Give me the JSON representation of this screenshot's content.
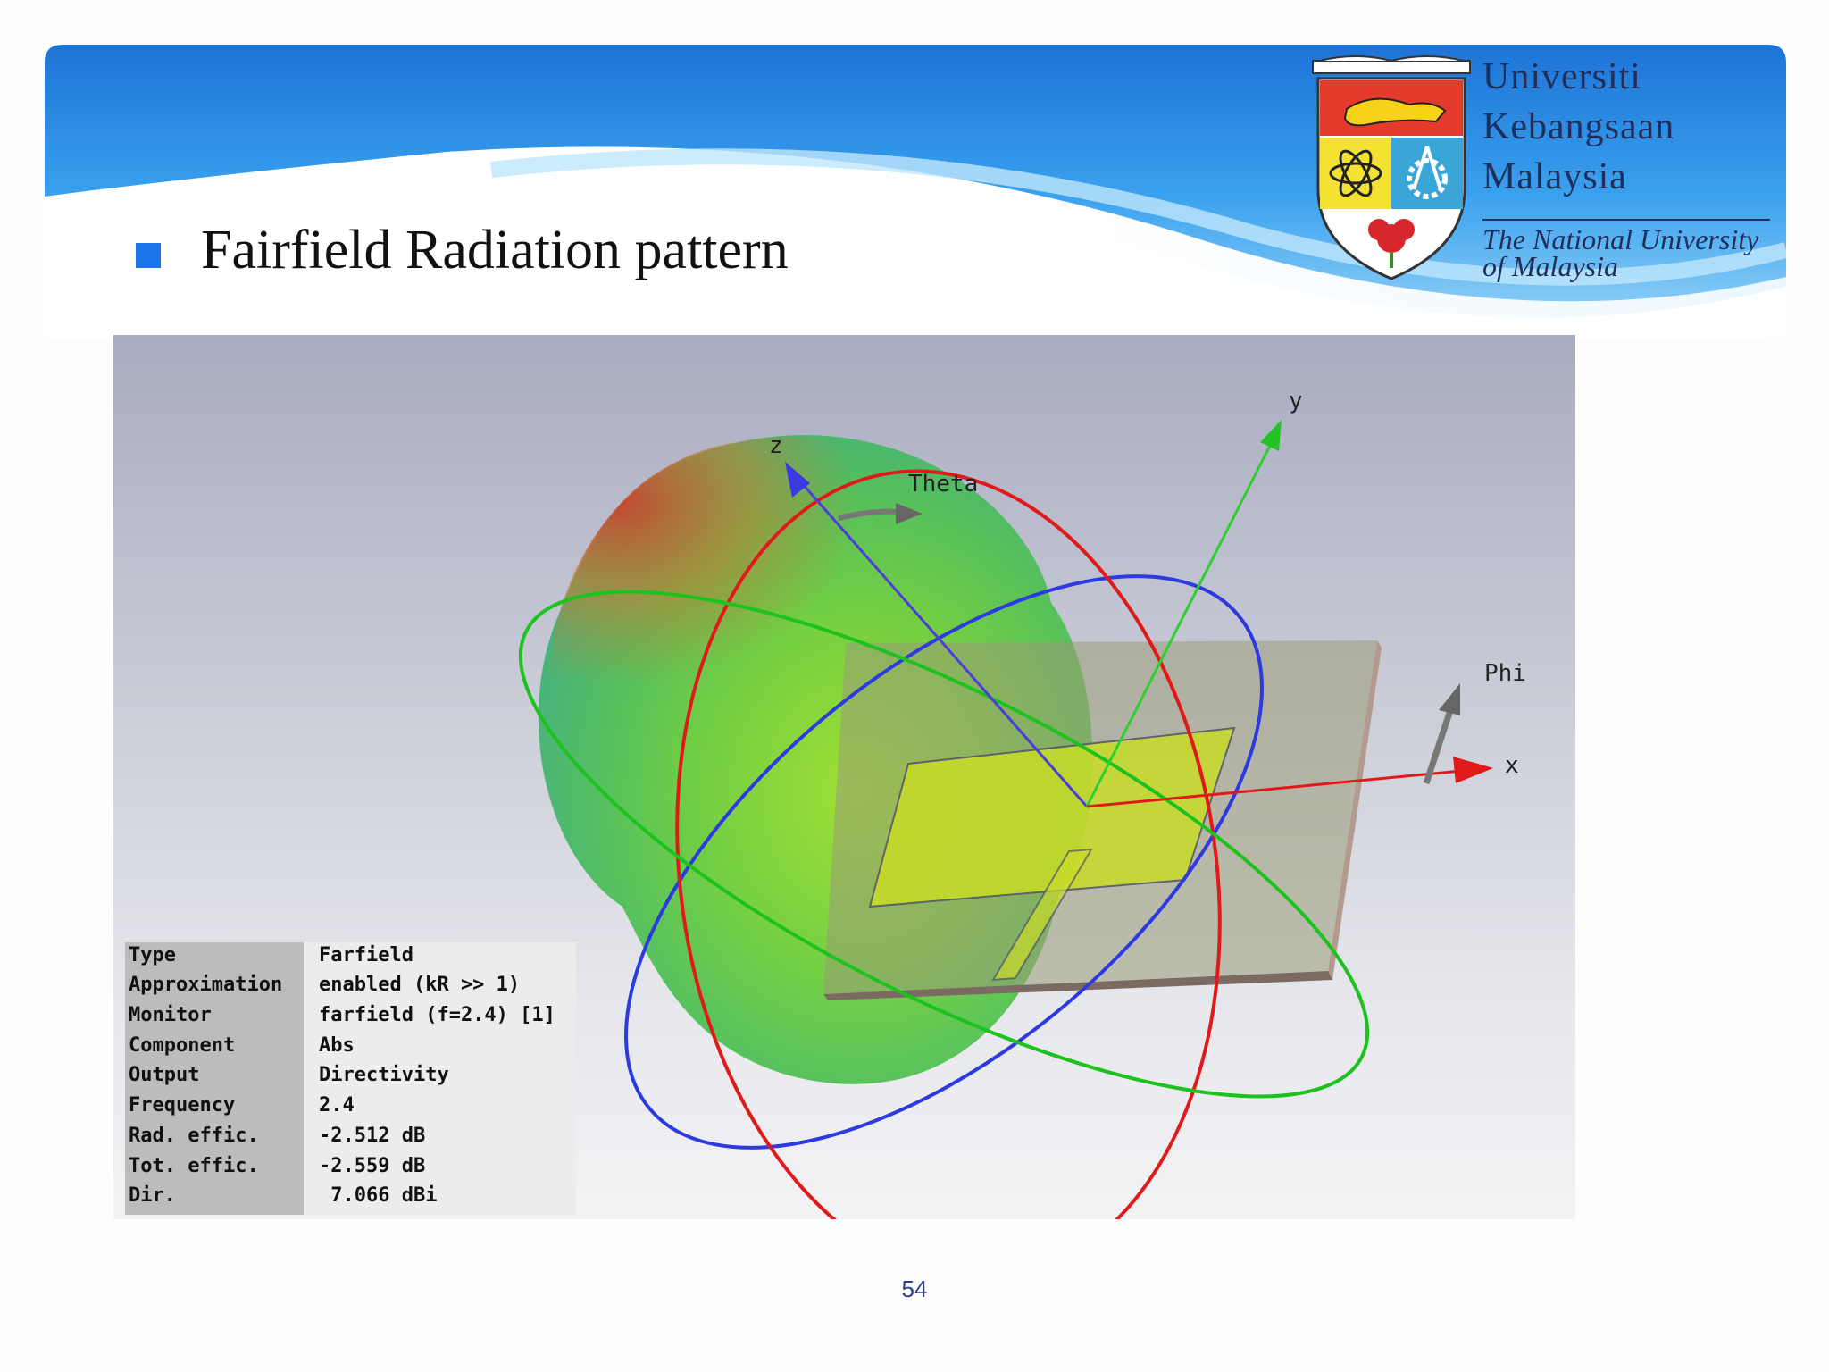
{
  "slide": {
    "title": "Fairfield Radiation pattern",
    "page_number": "54",
    "accent_color": "#1a73e8"
  },
  "logo": {
    "line1": "Universiti",
    "line2": "Kebangsaan",
    "line3": "Malaysia",
    "english1": "The National University",
    "english2": "of Malaysia"
  },
  "axes": {
    "x": "x",
    "y": "y",
    "z": "z",
    "theta": "Theta",
    "phi": "Phi"
  },
  "info": {
    "rows": [
      {
        "key": "Type",
        "value": "Farfield"
      },
      {
        "key": "Approximation",
        "value": "enabled (kR >> 1)"
      },
      {
        "key": "Monitor",
        "value": "farfield (f=2.4) [1]"
      },
      {
        "key": "Component",
        "value": "Abs"
      },
      {
        "key": "Output",
        "value": "Directivity"
      },
      {
        "key": "Frequency",
        "value": "2.4"
      },
      {
        "key": "Rad. effic.",
        "value": "-2.512 dB"
      },
      {
        "key": "Tot. effic.",
        "value": "-2.559 dB"
      },
      {
        "key": "Dir.",
        "value": " 7.066 dBi"
      }
    ]
  }
}
